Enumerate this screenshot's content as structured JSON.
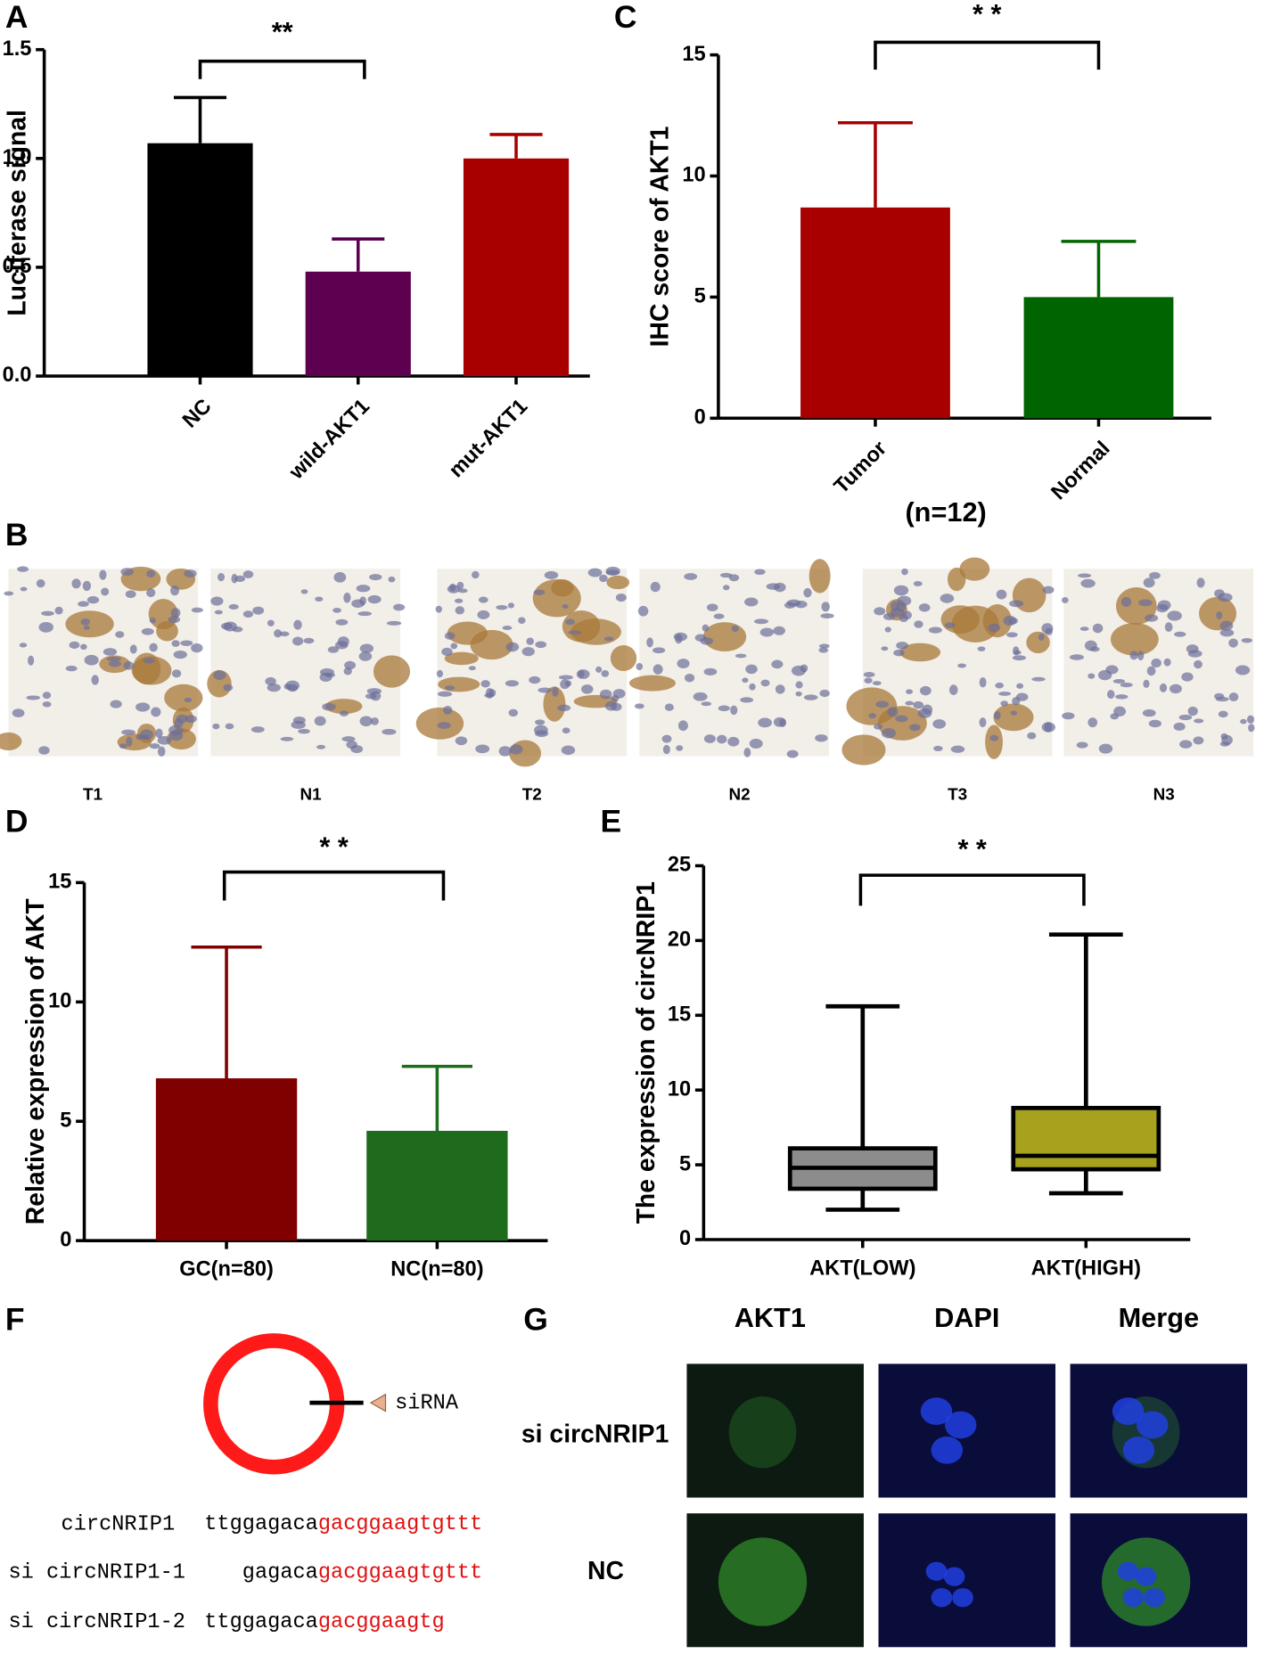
{
  "chart_data": [
    {
      "type": "bar",
      "panel_label": "A",
      "y_label": "Luciferase signal",
      "annotation": "**",
      "categories": [
        "NC",
        "wild-AKT1",
        "mut-AKT1"
      ],
      "values": [
        1.07,
        0.48,
        1.0
      ],
      "errors": [
        0.21,
        0.15,
        0.11
      ],
      "colors": [
        "#000000",
        "#5c004f",
        "#a80000"
      ],
      "ylim": [
        0,
        1.5
      ],
      "yticks": [
        {
          "value": 0,
          "label": "0.0"
        },
        0.5,
        {
          "value": 1,
          "label": "1.0"
        },
        1.5
      ]
    },
    {
      "type": "bar",
      "panel_label": "C",
      "y_label": "IHC score of AKT1",
      "annotation": "* *",
      "note": "(n=12)",
      "categories": [
        "Tumor",
        "Normal"
      ],
      "values": [
        8.7,
        5.0
      ],
      "errors": [
        3.5,
        2.3
      ],
      "colors": [
        "#a80000",
        "#006400"
      ],
      "ylim": [
        0,
        15
      ],
      "yticks": [
        0,
        5,
        10,
        15
      ]
    },
    {
      "type": "bar",
      "panel_label": "D",
      "y_label": "Relative expression of AKT",
      "annotation": "* *",
      "categories": [
        "GC(n=80)",
        "NC(n=80)"
      ],
      "values": [
        6.8,
        4.6
      ],
      "errors": [
        5.5,
        2.7
      ],
      "colors": [
        "#800000",
        "#1e6b1e"
      ],
      "ylim": [
        0,
        15
      ],
      "yticks": [
        0,
        5,
        10,
        15
      ]
    },
    {
      "type": "box",
      "panel_label": "E",
      "y_label": "The expression of circNRIP1",
      "annotation": "* *",
      "categories": [
        "AKT(LOW)",
        "AKT(HIGH)"
      ],
      "boxes": [
        {
          "min": 2.0,
          "q1": 3.4,
          "median": 4.8,
          "q3": 6.1,
          "max": 15.6,
          "color": "#8c8c8c"
        },
        {
          "min": 3.1,
          "q1": 4.7,
          "median": 5.6,
          "q3": 8.8,
          "max": 20.4,
          "color": "#a6a21e"
        }
      ],
      "ylim": [
        0,
        25
      ],
      "yticks": [
        0,
        5,
        10,
        15,
        20,
        25
      ]
    }
  ],
  "panel_b": {
    "label": "B",
    "images": [
      "T1",
      "N1",
      "T2",
      "N2",
      "T3",
      "N3"
    ]
  },
  "panel_f": {
    "label": "F",
    "marker": "siRNA",
    "sequences": [
      {
        "name": "circNRIP1",
        "plain": "ttggagaca",
        "target": "gacggaagtgttt"
      },
      {
        "name": "si circNRIP1-1",
        "plain": "gagaca",
        "target": "gacggaagtgttt"
      },
      {
        "name": "si circNRIP1-2",
        "plain": "ttggagaca",
        "target": "gacggaagtg"
      }
    ]
  },
  "panel_g": {
    "label": "G",
    "columns": [
      "AKT1",
      "DAPI",
      "Merge"
    ],
    "rows": [
      "si circNRIP1",
      "NC"
    ]
  }
}
